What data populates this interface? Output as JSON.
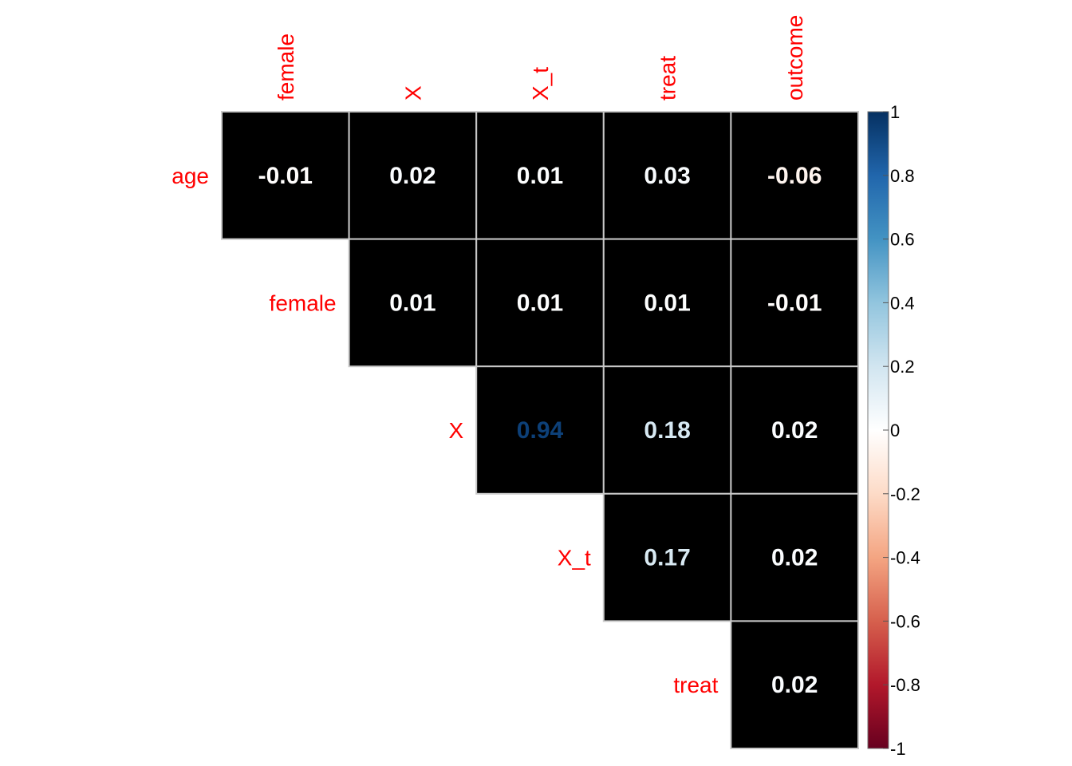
{
  "chart_data": {
    "type": "heatmap",
    "title": "",
    "column_labels": [
      "female",
      "X",
      "X_t",
      "treat",
      "outcome"
    ],
    "row_labels": [
      "age",
      "female",
      "X",
      "X_t",
      "treat"
    ],
    "cells": [
      {
        "row": "age",
        "col": "female",
        "value": -0.01,
        "label": "-0.01"
      },
      {
        "row": "age",
        "col": "X",
        "value": 0.02,
        "label": "0.02"
      },
      {
        "row": "age",
        "col": "X_t",
        "value": 0.01,
        "label": "0.01"
      },
      {
        "row": "age",
        "col": "treat",
        "value": 0.03,
        "label": "0.03"
      },
      {
        "row": "age",
        "col": "outcome",
        "value": -0.06,
        "label": "-0.06"
      },
      {
        "row": "female",
        "col": "X",
        "value": 0.01,
        "label": "0.01"
      },
      {
        "row": "female",
        "col": "X_t",
        "value": 0.01,
        "label": "0.01"
      },
      {
        "row": "female",
        "col": "treat",
        "value": 0.01,
        "label": "0.01"
      },
      {
        "row": "female",
        "col": "outcome",
        "value": -0.01,
        "label": "-0.01"
      },
      {
        "row": "X",
        "col": "X_t",
        "value": 0.94,
        "label": "0.94"
      },
      {
        "row": "X",
        "col": "treat",
        "value": 0.18,
        "label": "0.18"
      },
      {
        "row": "X",
        "col": "outcome",
        "value": 0.02,
        "label": "0.02"
      },
      {
        "row": "X_t",
        "col": "treat",
        "value": 0.17,
        "label": "0.17"
      },
      {
        "row": "X_t",
        "col": "outcome",
        "value": 0.02,
        "label": "0.02"
      },
      {
        "row": "treat",
        "col": "outcome",
        "value": 0.02,
        "label": "0.02"
      }
    ],
    "cell_background": "#000000",
    "label_color": "#ff0000",
    "grid_color": "#c8c8c8",
    "colorbar": {
      "range": [
        -1,
        1
      ],
      "ticks": [
        "1",
        "0.8",
        "0.6",
        "0.4",
        "0.2",
        "0",
        "-0.2",
        "-0.4",
        "-0.6",
        "-0.8",
        "-1"
      ],
      "colors": [
        "#67001f",
        "#b2182b",
        "#d6604d",
        "#f4a582",
        "#fddbc7",
        "#ffffff",
        "#d1e5f0",
        "#92c5de",
        "#4393c3",
        "#2166ac",
        "#053061"
      ]
    }
  }
}
